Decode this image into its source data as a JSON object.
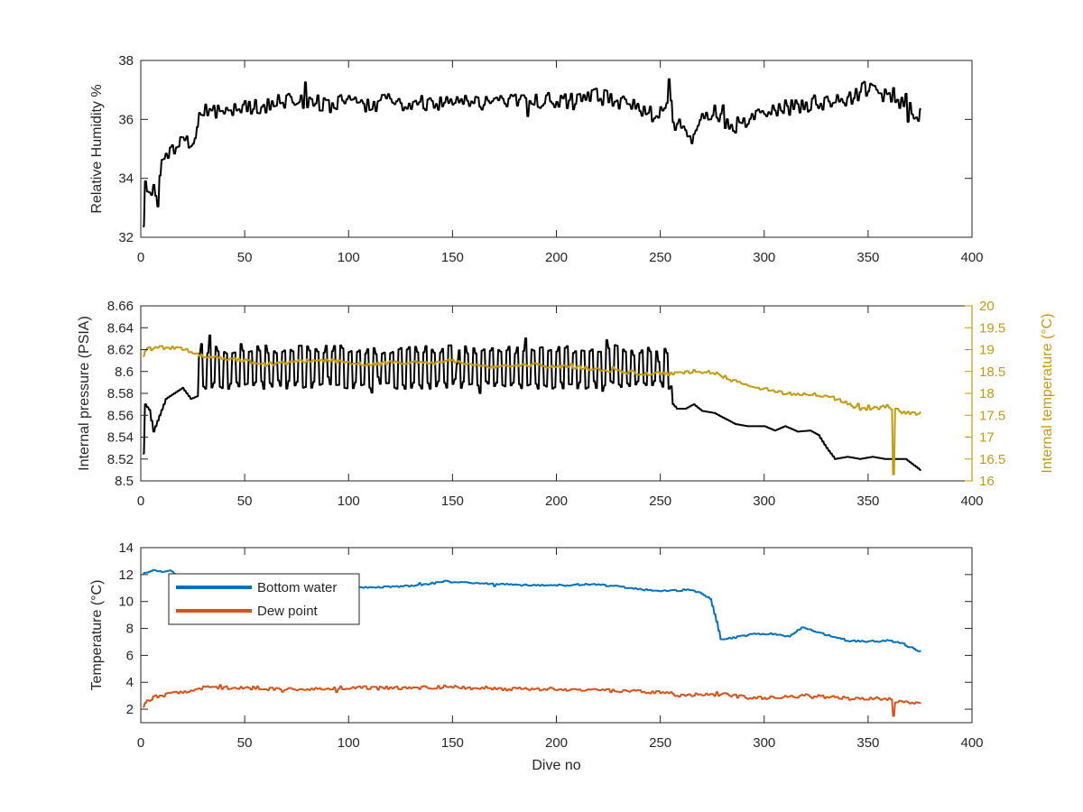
{
  "chart_data": [
    {
      "type": "line",
      "id": "top",
      "xlabel": "",
      "ylabel": "Relative Humidity %",
      "xlim": [
        0,
        400
      ],
      "ylim": [
        32,
        38
      ],
      "xticks": [
        0,
        50,
        100,
        150,
        200,
        250,
        300,
        350,
        400
      ],
      "yticks": [
        32,
        34,
        36,
        38
      ],
      "grid": false,
      "series": [
        {
          "color": "#000000",
          "noise": 0.28,
          "points": [
            [
              1,
              32.3
            ],
            [
              2,
              33.9
            ],
            [
              4,
              33.7
            ],
            [
              6,
              33.6
            ],
            [
              8,
              33.2
            ],
            [
              10,
              34.6
            ],
            [
              12,
              35.0
            ],
            [
              15,
              34.9
            ],
            [
              18,
              35.2
            ],
            [
              21,
              35.4
            ],
            [
              24,
              35.0
            ],
            [
              26,
              35.4
            ],
            [
              28,
              36.0
            ],
            [
              30,
              36.3
            ],
            [
              35,
              36.2
            ],
            [
              40,
              36.3
            ],
            [
              45,
              36.5
            ],
            [
              50,
              36.4
            ],
            [
              60,
              36.5
            ],
            [
              70,
              36.6
            ],
            [
              80,
              36.6
            ],
            [
              90,
              36.5
            ],
            [
              100,
              36.6
            ],
            [
              110,
              36.5
            ],
            [
              120,
              36.6
            ],
            [
              130,
              36.5
            ],
            [
              140,
              36.6
            ],
            [
              150,
              36.6
            ],
            [
              160,
              36.6
            ],
            [
              170,
              36.6
            ],
            [
              180,
              36.6
            ],
            [
              190,
              36.6
            ],
            [
              200,
              36.7
            ],
            [
              210,
              36.6
            ],
            [
              220,
              36.8
            ],
            [
              230,
              36.6
            ],
            [
              240,
              36.4
            ],
            [
              248,
              36.2
            ],
            [
              252,
              36.4
            ],
            [
              254,
              37.2
            ],
            [
              256,
              36.0
            ],
            [
              258,
              35.8
            ],
            [
              262,
              35.5
            ],
            [
              266,
              35.4
            ],
            [
              270,
              36.0
            ],
            [
              276,
              36.3
            ],
            [
              280,
              35.8
            ],
            [
              284,
              35.7
            ],
            [
              290,
              35.9
            ],
            [
              300,
              36.2
            ],
            [
              310,
              36.4
            ],
            [
              320,
              36.5
            ],
            [
              330,
              36.6
            ],
            [
              340,
              36.7
            ],
            [
              348,
              37.0
            ],
            [
              355,
              36.9
            ],
            [
              362,
              36.7
            ],
            [
              368,
              36.6
            ],
            [
              372,
              36.3
            ],
            [
              375,
              36.1
            ]
          ]
        }
      ]
    },
    {
      "type": "line",
      "id": "middle",
      "xlabel": "",
      "ylabel": "Internal pressure (PSIA)",
      "ylabel_right": "Internal temperature (°C)",
      "xlim": [
        0,
        400
      ],
      "ylim": [
        8.5,
        8.66
      ],
      "ylim_right": [
        16,
        20
      ],
      "xticks": [
        0,
        50,
        100,
        150,
        200,
        250,
        300,
        350,
        400
      ],
      "yticks": [
        8.5,
        8.52,
        8.54,
        8.56,
        8.58,
        8.6,
        8.62,
        8.64,
        8.66
      ],
      "yticks_right": [
        16,
        16.5,
        17,
        17.5,
        18,
        18.5,
        19,
        19.5,
        20
      ],
      "right_tick_labels": [
        "16",
        "16.5",
        "17",
        "17.5",
        "18",
        "18.5",
        "19",
        "19.5",
        "20"
      ],
      "grid": false,
      "series": [
        {
          "axis": "left",
          "color": "#000000",
          "oscillate": {
            "from": 28,
            "to": 256,
            "period": 4,
            "low": 8.588,
            "high": 8.62
          },
          "points": [
            [
              1,
              8.525
            ],
            [
              2,
              8.57
            ],
            [
              4,
              8.565
            ],
            [
              6,
              8.545
            ],
            [
              9,
              8.56
            ],
            [
              12,
              8.575
            ],
            [
              16,
              8.58
            ],
            [
              20,
              8.585
            ],
            [
              24,
              8.575
            ],
            [
              28,
              8.578
            ],
            [
              256,
              8.57
            ],
            [
              258,
              8.566
            ],
            [
              262,
              8.566
            ],
            [
              266,
              8.57
            ],
            [
              270,
              8.564
            ],
            [
              276,
              8.562
            ],
            [
              282,
              8.556
            ],
            [
              286,
              8.552
            ],
            [
              292,
              8.55
            ],
            [
              300,
              8.55
            ],
            [
              305,
              8.546
            ],
            [
              310,
              8.55
            ],
            [
              316,
              8.545
            ],
            [
              322,
              8.546
            ],
            [
              326,
              8.542
            ],
            [
              330,
              8.53
            ],
            [
              334,
              8.52
            ],
            [
              340,
              8.522
            ],
            [
              346,
              8.52
            ],
            [
              352,
              8.522
            ],
            [
              358,
              8.52
            ],
            [
              362,
              8.52
            ],
            [
              368,
              8.52
            ],
            [
              375,
              8.51
            ]
          ]
        },
        {
          "axis": "right",
          "color": "#c49a0f",
          "noise": 0.04,
          "points": [
            [
              1,
              18.95
            ],
            [
              5,
              19.05
            ],
            [
              10,
              19.05
            ],
            [
              15,
              19.05
            ],
            [
              20,
              19.0
            ],
            [
              25,
              18.95
            ],
            [
              30,
              18.85
            ],
            [
              40,
              18.8
            ],
            [
              50,
              18.75
            ],
            [
              60,
              18.65
            ],
            [
              70,
              18.7
            ],
            [
              80,
              18.75
            ],
            [
              90,
              18.75
            ],
            [
              100,
              18.7
            ],
            [
              110,
              18.65
            ],
            [
              120,
              18.7
            ],
            [
              130,
              18.7
            ],
            [
              140,
              18.7
            ],
            [
              150,
              18.75
            ],
            [
              160,
              18.65
            ],
            [
              170,
              18.6
            ],
            [
              180,
              18.65
            ],
            [
              190,
              18.65
            ],
            [
              200,
              18.6
            ],
            [
              210,
              18.6
            ],
            [
              220,
              18.55
            ],
            [
              230,
              18.5
            ],
            [
              240,
              18.45
            ],
            [
              250,
              18.45
            ],
            [
              258,
              18.45
            ],
            [
              266,
              18.5
            ],
            [
              272,
              18.5
            ],
            [
              278,
              18.45
            ],
            [
              284,
              18.3
            ],
            [
              290,
              18.2
            ],
            [
              300,
              18.1
            ],
            [
              310,
              18.0
            ],
            [
              320,
              18.0
            ],
            [
              330,
              17.95
            ],
            [
              336,
              17.85
            ],
            [
              340,
              17.75
            ],
            [
              346,
              17.65
            ],
            [
              352,
              17.65
            ],
            [
              358,
              17.7
            ],
            [
              360,
              17.7
            ],
            [
              361,
              17.6
            ],
            [
              362,
              16.15
            ],
            [
              363,
              17.65
            ],
            [
              366,
              17.55
            ],
            [
              370,
              17.55
            ],
            [
              375,
              17.55
            ]
          ]
        }
      ]
    },
    {
      "type": "line",
      "id": "bottom",
      "xlabel": "Dive no",
      "ylabel": "Temperature (°C)",
      "xlim": [
        0,
        400
      ],
      "ylim": [
        1,
        14
      ],
      "xticks": [
        0,
        50,
        100,
        150,
        200,
        250,
        300,
        350,
        400
      ],
      "yticks": [
        2,
        4,
        6,
        8,
        10,
        12,
        14
      ],
      "grid": false,
      "legend": "top-left",
      "series": [
        {
          "name": "Bottom water",
          "color": "#0072bd",
          "noise": 0.06,
          "points": [
            [
              1,
              12.1
            ],
            [
              5,
              12.3
            ],
            [
              10,
              12.2
            ],
            [
              14,
              12.3
            ],
            [
              18,
              11.8
            ],
            [
              25,
              11.4
            ],
            [
              40,
              11.3
            ],
            [
              60,
              11.3
            ],
            [
              80,
              11.2
            ],
            [
              100,
              11.0
            ],
            [
              120,
              11.1
            ],
            [
              135,
              11.2
            ],
            [
              145,
              11.5
            ],
            [
              155,
              11.4
            ],
            [
              170,
              11.3
            ],
            [
              190,
              11.2
            ],
            [
              205,
              11.2
            ],
            [
              215,
              11.3
            ],
            [
              230,
              11.1
            ],
            [
              240,
              10.9
            ],
            [
              250,
              10.8
            ],
            [
              258,
              10.8
            ],
            [
              264,
              10.9
            ],
            [
              270,
              10.6
            ],
            [
              274,
              10.2
            ],
            [
              277,
              8.5
            ],
            [
              279,
              7.2
            ],
            [
              285,
              7.3
            ],
            [
              295,
              7.6
            ],
            [
              305,
              7.6
            ],
            [
              312,
              7.4
            ],
            [
              318,
              8.1
            ],
            [
              322,
              7.9
            ],
            [
              330,
              7.5
            ],
            [
              340,
              7.1
            ],
            [
              350,
              7.0
            ],
            [
              360,
              7.1
            ],
            [
              366,
              6.9
            ],
            [
              370,
              6.6
            ],
            [
              375,
              6.3
            ]
          ]
        },
        {
          "name": "Dew point",
          "color": "#d95319",
          "noise": 0.12,
          "points": [
            [
              1,
              2.2
            ],
            [
              3,
              2.6
            ],
            [
              6,
              2.9
            ],
            [
              10,
              3.0
            ],
            [
              15,
              3.2
            ],
            [
              20,
              3.3
            ],
            [
              25,
              3.3
            ],
            [
              30,
              3.6
            ],
            [
              40,
              3.6
            ],
            [
              50,
              3.6
            ],
            [
              60,
              3.5
            ],
            [
              80,
              3.5
            ],
            [
              100,
              3.6
            ],
            [
              120,
              3.6
            ],
            [
              140,
              3.6
            ],
            [
              150,
              3.7
            ],
            [
              160,
              3.5
            ],
            [
              180,
              3.5
            ],
            [
              200,
              3.5
            ],
            [
              220,
              3.4
            ],
            [
              240,
              3.3
            ],
            [
              255,
              3.2
            ],
            [
              260,
              3.0
            ],
            [
              270,
              3.1
            ],
            [
              280,
              3.1
            ],
            [
              290,
              2.9
            ],
            [
              300,
              2.8
            ],
            [
              310,
              2.9
            ],
            [
              320,
              3.0
            ],
            [
              330,
              2.9
            ],
            [
              340,
              2.8
            ],
            [
              350,
              2.8
            ],
            [
              358,
              2.8
            ],
            [
              360,
              2.8
            ],
            [
              361,
              2.6
            ],
            [
              362,
              1.5
            ],
            [
              363,
              2.5
            ],
            [
              366,
              2.6
            ],
            [
              370,
              2.5
            ],
            [
              375,
              2.4
            ]
          ]
        }
      ]
    }
  ]
}
